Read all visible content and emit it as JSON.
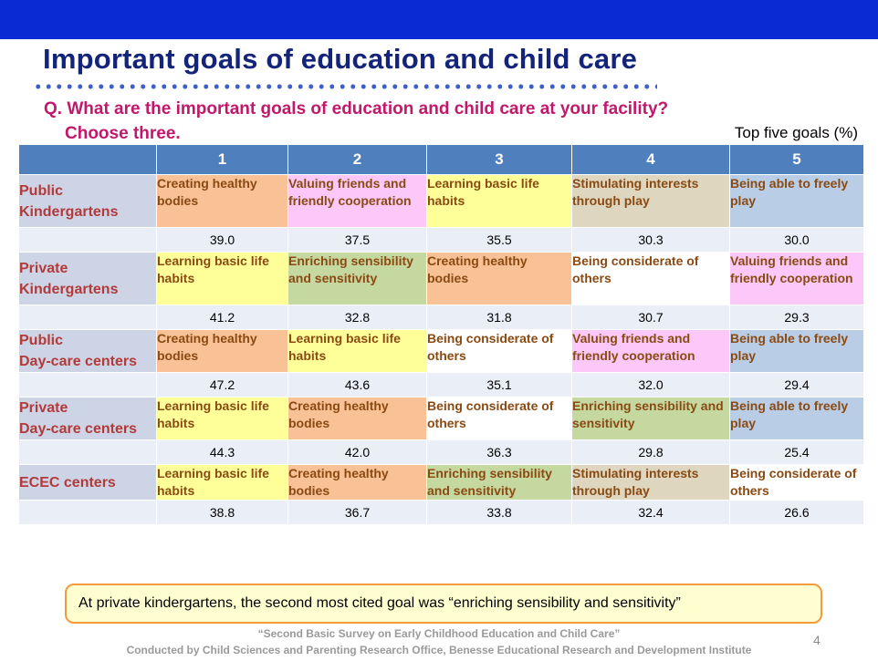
{
  "title": "Important goals of education and child care",
  "question": {
    "line1": "Q. What are the important goals of education and child care at your facility?",
    "line2": "Choose three."
  },
  "table_note": "Top five goals (%)",
  "table": {
    "columns": [
      "1",
      "2",
      "3",
      "4",
      "5"
    ],
    "groups": [
      {
        "name_line1": "Public",
        "name_line2": "Kindergartens",
        "goals": [
          {
            "label": "Creating healthy bodies",
            "value": "39.0",
            "color": "#f8c196"
          },
          {
            "label": "Valuing friends and friendly cooperation",
            "value": "37.5",
            "color": "#fcc8fa"
          },
          {
            "label": "Learning basic life habits",
            "value": "35.5",
            "color": "#ffff9a"
          },
          {
            "label": "Stimulating interests through play",
            "value": "30.3",
            "color": "#ded6bf"
          },
          {
            "label": "Being able to freely play",
            "value": "30.0",
            "color": "#b9cde6"
          }
        ]
      },
      {
        "name_line1": "Private",
        "name_line2": "Kindergartens",
        "goals": [
          {
            "label": "Learning basic life habits",
            "value": "41.2",
            "color": "#ffff9a"
          },
          {
            "label": "Enriching sensibility and sensitivity",
            "value": "32.8",
            "color": "#c4d8a0"
          },
          {
            "label": "Creating healthy bodies",
            "value": "31.8",
            "color": "#f8c196"
          },
          {
            "label": "Being considerate of others",
            "value": "30.7",
            "color": "#ffffff"
          },
          {
            "label": "Valuing friends and friendly cooperation",
            "value": "29.3",
            "color": "#fcc8fa"
          }
        ]
      },
      {
        "name_line1": "Public",
        "name_line2": "Day-care centers",
        "goals": [
          {
            "label": "Creating healthy bodies",
            "value": "47.2",
            "color": "#f8c196"
          },
          {
            "label": "Learning basic life habits",
            "value": "43.6",
            "color": "#ffff9a"
          },
          {
            "label": "Being considerate of others",
            "value": "35.1",
            "color": "#ffffff"
          },
          {
            "label": "Valuing friends and friendly cooperation",
            "value": "32.0",
            "color": "#fcc8fa"
          },
          {
            "label": "Being able to freely play",
            "value": "29.4",
            "color": "#b9cde6"
          }
        ]
      },
      {
        "name_line1": "Private",
        "name_line2": "Day-care centers",
        "goals": [
          {
            "label": "Learning basic life habits",
            "value": "44.3",
            "color": "#ffff9a"
          },
          {
            "label": "Creating healthy bodies",
            "value": "42.0",
            "color": "#f8c196"
          },
          {
            "label": "Being considerate of others",
            "value": "36.3",
            "color": "#ffffff"
          },
          {
            "label": "Enriching sensibility and sensitivity",
            "value": "29.8",
            "color": "#c4d8a0"
          },
          {
            "label": "Being able to freely play",
            "value": "25.4",
            "color": "#b9cde6"
          }
        ]
      },
      {
        "name_line1": "ECEC centers",
        "name_line2": "",
        "goals": [
          {
            "label": "Learning basic life habits",
            "value": "38.8",
            "color": "#ffff9a"
          },
          {
            "label": "Creating healthy bodies",
            "value": "36.7",
            "color": "#f8c196"
          },
          {
            "label": "Enriching sensibility and sensitivity",
            "value": "33.8",
            "color": "#c4d8a0"
          },
          {
            "label": "Stimulating interests through play",
            "value": "32.4",
            "color": "#ded6bf"
          },
          {
            "label": "Being considerate of others",
            "value": "26.6",
            "color": "#ffffff"
          }
        ]
      }
    ]
  },
  "callout": "At private kindergartens, the second most cited goal was “enriching sensibility and sensitivity”",
  "footer": {
    "line1": "“Second Basic Survey on Early Childhood Education and Child Care”",
    "line2": "Conducted by Child Sciences and Parenting Research Office,  Benesse Educational Research and Development Institute"
  },
  "page_number": "4",
  "colors": {
    "top_bar": "#0a2bd4",
    "title": "#14247a",
    "question": "#c2186b",
    "header": "#4f7fbd",
    "group_label": "#b23a3a",
    "goal_text": "#8a4a12",
    "callout_border": "#f39a3c",
    "callout_bg": "#fffed1"
  }
}
